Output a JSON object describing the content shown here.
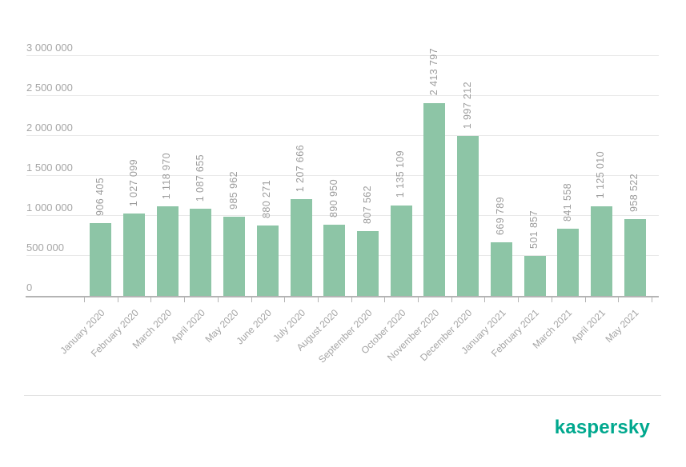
{
  "chart_data": {
    "type": "bar",
    "title": "",
    "xlabel": "",
    "ylabel": "",
    "grid": true,
    "legend": false,
    "ylim": [
      0,
      3000000
    ],
    "categories": [
      "January 2020",
      "February 2020",
      "March 2020",
      "April 2020",
      "May 2020",
      "June 2020",
      "July 2020",
      "August 2020",
      "September 2020",
      "October 2020",
      "November 2020",
      "December 2020",
      "January 2021",
      "February 2021",
      "March 2021",
      "April 2021",
      "May 2021"
    ],
    "values": [
      906405,
      1027099,
      1118970,
      1087655,
      985962,
      880271,
      1207666,
      890950,
      807562,
      1135109,
      2413797,
      1997212,
      669789,
      501857,
      841558,
      1125010,
      958522
    ],
    "value_labels": [
      "906 405",
      "1 027 099",
      "1 118 970",
      "1 087 655",
      "985 962",
      "880 271",
      "1 207 666",
      "890 950",
      "807 562",
      "1 135 109",
      "2 413 797",
      "1 997 212",
      "669 789",
      "501 857",
      "841 558",
      "1 125 010",
      "958 522"
    ],
    "y_ticks": [
      {
        "value": 0,
        "label": "0"
      },
      {
        "value": 500000,
        "label": "500 000"
      },
      {
        "value": 1000000,
        "label": "1 000 000"
      },
      {
        "value": 1500000,
        "label": "1 500 000"
      },
      {
        "value": 2000000,
        "label": "2 000 000"
      },
      {
        "value": 2500000,
        "label": "2 500 000"
      },
      {
        "value": 3000000,
        "label": "3 000 000"
      }
    ],
    "colors": {
      "bar": "#8dc5a6",
      "value_label": "#9c9c9c",
      "axis_label": "#a5a5a5",
      "axis_line": "#b4b4b4",
      "gridline": "#e9e9e9"
    }
  },
  "footer": {
    "logo_text": "kaspersky",
    "logo_color": "#00a88e"
  }
}
